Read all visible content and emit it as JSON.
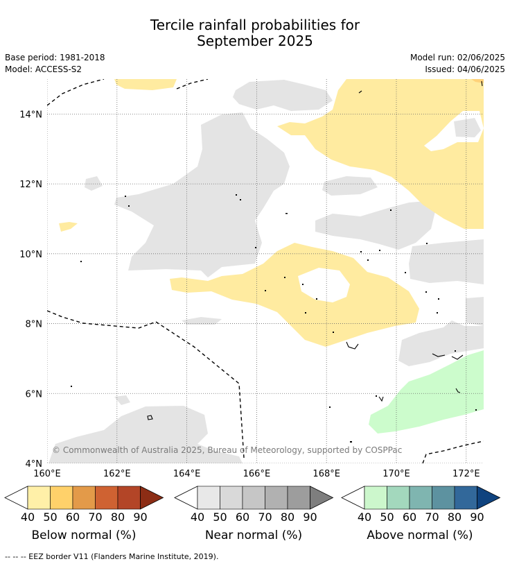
{
  "title": {
    "line1": "Tercile rainfall probabilities for",
    "line2": "September 2025"
  },
  "meta": {
    "base_period": "Base period: 1981-2018",
    "model": "Model: ACCESS-S2",
    "model_run": "Model run: 02/06/2025",
    "issued": "Issued: 04/06/2025"
  },
  "map": {
    "lon_range": [
      160,
      172.5
    ],
    "lat_range": [
      4,
      15
    ],
    "x_ticks": [
      "160°E",
      "162°E",
      "164°E",
      "166°E",
      "168°E",
      "170°E",
      "172°E"
    ],
    "y_ticks": [
      "4°N",
      "6°N",
      "8°N",
      "10°N",
      "12°N",
      "14°N"
    ],
    "copyright": "© Commonwealth of Australia 2025, Bureau of Meteorology, supported by COSPPac"
  },
  "legends": [
    {
      "label": "Below normal (%)",
      "ticks": [
        "40",
        "50",
        "60",
        "70",
        "80",
        "90"
      ],
      "colors": [
        "#fff0a8",
        "#ffd16a",
        "#e39a49",
        "#cf6232",
        "#b34527",
        "#8c2d15"
      ]
    },
    {
      "label": "Near normal (%)",
      "ticks": [
        "40",
        "50",
        "60",
        "70",
        "80",
        "90"
      ],
      "colors": [
        "#e8e8e8",
        "#d9d9d9",
        "#c6c6c6",
        "#b1b1b1",
        "#9d9d9d",
        "#7e7e7e"
      ]
    },
    {
      "label": "Above normal (%)",
      "ticks": [
        "40",
        "50",
        "60",
        "70",
        "80",
        "90"
      ],
      "colors": [
        "#ccf7cc",
        "#a3d8bd",
        "#7fb5b0",
        "#5d92a0",
        "#32689a",
        "#0f437f"
      ]
    }
  ],
  "colors": {
    "below_40": "#ffeba0",
    "below_50": "#ffd27a",
    "near_40": "#e4e4e4",
    "above_40": "#ccfccc"
  },
  "footnote": "--  --  -- EEZ border V11 (Flanders Marine Institute, 2019)."
}
